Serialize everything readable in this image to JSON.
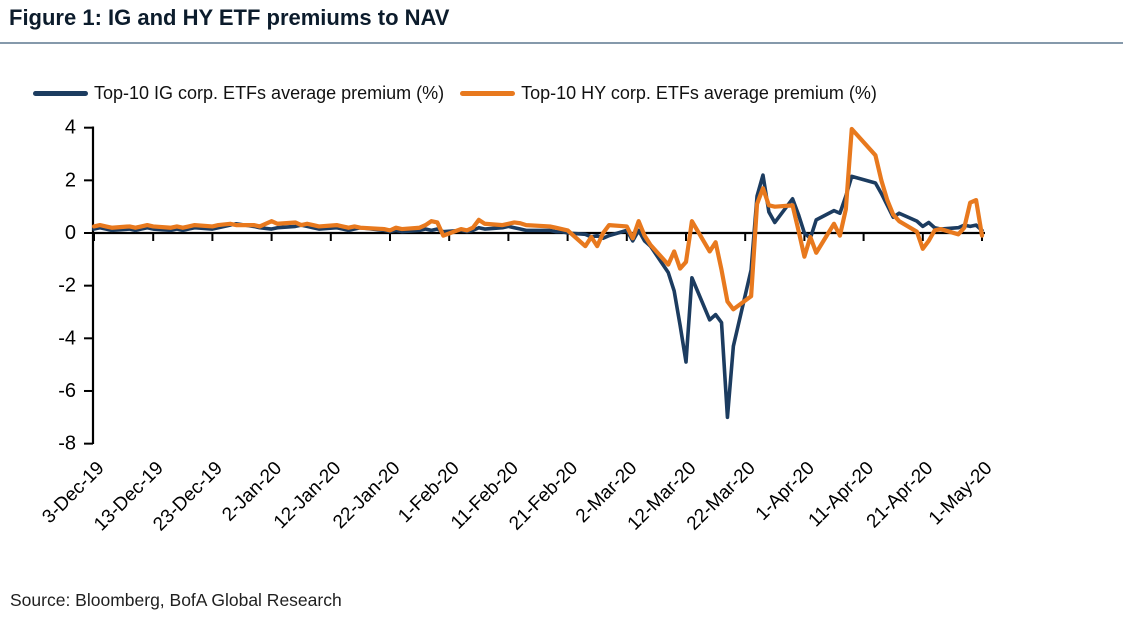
{
  "chart_data": {
    "type": "line",
    "title": "Figure 1: IG and HY ETF premiums to NAV",
    "source": "Source: Bloomberg, BofA Global Research",
    "legend_position": "top-left",
    "grid": false,
    "y_axis": {
      "min": -8,
      "max": 4,
      "step": 2,
      "ticks": [
        4,
        2,
        0,
        -2,
        -4,
        -6,
        -8
      ]
    },
    "x_axis": {
      "tick_labels": [
        "3-Dec-19",
        "13-Dec-19",
        "23-Dec-19",
        "2-Jan-20",
        "12-Jan-20",
        "22-Jan-20",
        "1-Feb-20",
        "11-Feb-20",
        "21-Feb-20",
        "2-Mar-20",
        "12-Mar-20",
        "22-Mar-20",
        "1-Apr-20",
        "11-Apr-20",
        "21-Apr-20",
        "1-May-20"
      ],
      "tick_dates": [
        "2019-12-03",
        "2019-12-13",
        "2019-12-23",
        "2020-01-02",
        "2020-01-12",
        "2020-01-22",
        "2020-02-01",
        "2020-02-11",
        "2020-02-21",
        "2020-03-02",
        "2020-03-12",
        "2020-03-22",
        "2020-04-01",
        "2020-04-11",
        "2020-04-21",
        "2020-05-01"
      ]
    },
    "dates": [
      "2019-12-03",
      "2019-12-04",
      "2019-12-05",
      "2019-12-06",
      "2019-12-09",
      "2019-12-10",
      "2019-12-11",
      "2019-12-12",
      "2019-12-13",
      "2019-12-16",
      "2019-12-17",
      "2019-12-18",
      "2019-12-19",
      "2019-12-20",
      "2019-12-23",
      "2019-12-24",
      "2019-12-26",
      "2019-12-27",
      "2019-12-30",
      "2019-12-31",
      "2020-01-02",
      "2020-01-03",
      "2020-01-06",
      "2020-01-07",
      "2020-01-08",
      "2020-01-09",
      "2020-01-10",
      "2020-01-13",
      "2020-01-14",
      "2020-01-15",
      "2020-01-16",
      "2020-01-17",
      "2020-01-21",
      "2020-01-22",
      "2020-01-23",
      "2020-01-24",
      "2020-01-27",
      "2020-01-28",
      "2020-01-29",
      "2020-01-30",
      "2020-01-31",
      "2020-02-03",
      "2020-02-04",
      "2020-02-05",
      "2020-02-06",
      "2020-02-07",
      "2020-02-10",
      "2020-02-11",
      "2020-02-12",
      "2020-02-13",
      "2020-02-14",
      "2020-02-18",
      "2020-02-19",
      "2020-02-20",
      "2020-02-21",
      "2020-02-24",
      "2020-02-25",
      "2020-02-26",
      "2020-02-27",
      "2020-02-28",
      "2020-03-02",
      "2020-03-03",
      "2020-03-04",
      "2020-03-05",
      "2020-03-06",
      "2020-03-09",
      "2020-03-10",
      "2020-03-11",
      "2020-03-12",
      "2020-03-13",
      "2020-03-16",
      "2020-03-17",
      "2020-03-18",
      "2020-03-19",
      "2020-03-20",
      "2020-03-23",
      "2020-03-24",
      "2020-03-25",
      "2020-03-26",
      "2020-03-27",
      "2020-03-30",
      "2020-03-31",
      "2020-04-01",
      "2020-04-02",
      "2020-04-03",
      "2020-04-06",
      "2020-04-07",
      "2020-04-08",
      "2020-04-09",
      "2020-04-13",
      "2020-04-14",
      "2020-04-15",
      "2020-04-16",
      "2020-04-17",
      "2020-04-20",
      "2020-04-21",
      "2020-04-22",
      "2020-04-23",
      "2020-04-24",
      "2020-04-27",
      "2020-04-28",
      "2020-04-29",
      "2020-04-30",
      "2020-05-01"
    ],
    "series": [
      {
        "name": "Top-10 IG corp. ETFs average premium (%)",
        "color": "#1c3c60",
        "values": [
          0.15,
          0.2,
          0.15,
          0.1,
          0.15,
          0.1,
          0.15,
          0.2,
          0.15,
          0.1,
          0.15,
          0.1,
          0.15,
          0.2,
          0.15,
          0.2,
          0.3,
          0.35,
          0.25,
          0.2,
          0.15,
          0.2,
          0.25,
          0.3,
          0.25,
          0.2,
          0.15,
          0.2,
          0.15,
          0.1,
          0.15,
          0.2,
          0.1,
          0.05,
          0.1,
          0.05,
          0.1,
          0.15,
          0.1,
          0.15,
          0.05,
          0.1,
          0.05,
          0.1,
          0.2,
          0.15,
          0.2,
          0.25,
          0.2,
          0.15,
          0.1,
          0.1,
          0.05,
          0.05,
          0.0,
          -0.05,
          -0.15,
          -0.1,
          -0.2,
          -0.1,
          0.1,
          -0.3,
          0.1,
          -0.3,
          -0.5,
          -1.5,
          -2.2,
          -3.5,
          -4.9,
          -1.7,
          -3.3,
          -3.1,
          -3.4,
          -7.0,
          -4.3,
          -1.4,
          1.4,
          2.2,
          0.8,
          0.4,
          1.3,
          0.7,
          0.0,
          -0.2,
          0.5,
          0.85,
          0.75,
          1.4,
          2.15,
          1.9,
          1.5,
          1.05,
          0.6,
          0.75,
          0.45,
          0.25,
          0.4,
          0.2,
          0.15,
          0.2,
          0.3,
          0.25,
          0.3,
          0.1
        ]
      },
      {
        "name": "Top-10 HY corp. ETFs average premium (%)",
        "color": "#e8791e",
        "values": [
          0.25,
          0.3,
          0.25,
          0.2,
          0.25,
          0.2,
          0.25,
          0.3,
          0.25,
          0.2,
          0.25,
          0.2,
          0.25,
          0.3,
          0.25,
          0.3,
          0.35,
          0.3,
          0.3,
          0.25,
          0.45,
          0.35,
          0.4,
          0.3,
          0.35,
          0.3,
          0.25,
          0.3,
          0.25,
          0.2,
          0.25,
          0.2,
          0.15,
          0.1,
          0.2,
          0.15,
          0.2,
          0.3,
          0.45,
          0.4,
          -0.1,
          0.15,
          0.1,
          0.2,
          0.5,
          0.35,
          0.3,
          0.35,
          0.4,
          0.37,
          0.3,
          0.25,
          0.2,
          0.15,
          0.1,
          -0.5,
          -0.15,
          -0.5,
          0.0,
          0.3,
          0.25,
          -0.2,
          0.45,
          -0.1,
          -0.45,
          -1.2,
          -0.7,
          -1.35,
          -1.1,
          0.45,
          -0.7,
          -0.35,
          -1.4,
          -2.6,
          -2.9,
          -2.4,
          1.1,
          1.7,
          1.05,
          1.0,
          1.05,
          0.1,
          -0.9,
          -0.15,
          -0.75,
          0.35,
          -0.1,
          0.9,
          3.95,
          2.95,
          2.0,
          1.25,
          0.7,
          0.45,
          0.05,
          -0.6,
          -0.3,
          0.1,
          0.15,
          -0.05,
          0.2,
          1.15,
          1.25,
          -0.1
        ]
      }
    ]
  }
}
